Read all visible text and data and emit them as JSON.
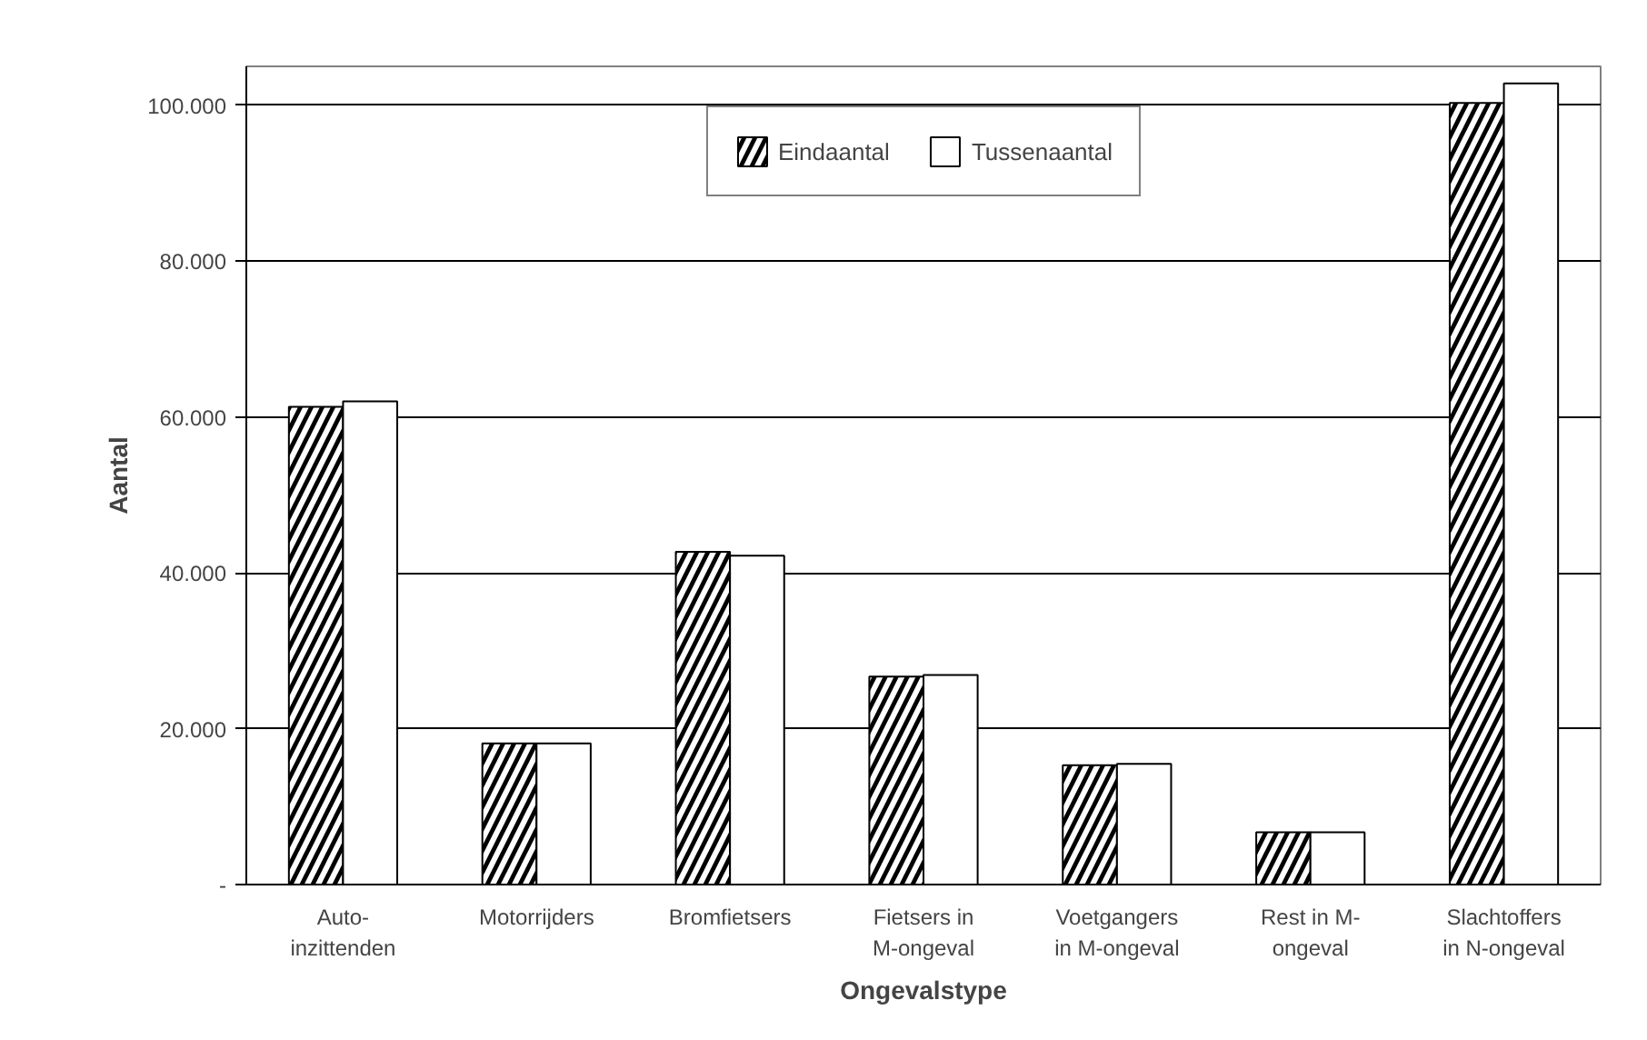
{
  "chart_data": {
    "type": "bar",
    "xlabel": "Ongevalstype",
    "ylabel": "Aantal",
    "categories": [
      "Auto-\ninzittenden",
      "Motorrijders",
      "Bromfietsers",
      "Fietsers in\nM-ongeval",
      "Voetgangers\nin M-ongeval",
      "Rest in M-\nongeval",
      "Slachtoffers\nin N-ongeval"
    ],
    "series": [
      {
        "name": "Eindaantal",
        "color": "#000000",
        "values": [
          61300,
          18100,
          42700,
          26700,
          15300,
          6700,
          100300
        ]
      },
      {
        "name": "Tussenaantal",
        "color": "#ffffff",
        "values": [
          62000,
          18100,
          42200,
          26900,
          15500,
          6700,
          102800
        ]
      }
    ],
    "ylim": [
      0,
      105000
    ],
    "yticks": [
      {
        "value": 0,
        "label": "-"
      },
      {
        "value": 20000,
        "label": "20.000"
      },
      {
        "value": 40000,
        "label": "40.000"
      },
      {
        "value": 60000,
        "label": "60.000"
      },
      {
        "value": 80000,
        "label": "80.000"
      },
      {
        "value": 100000,
        "label": "100.000"
      }
    ],
    "grid": "y",
    "legend": "top"
  }
}
